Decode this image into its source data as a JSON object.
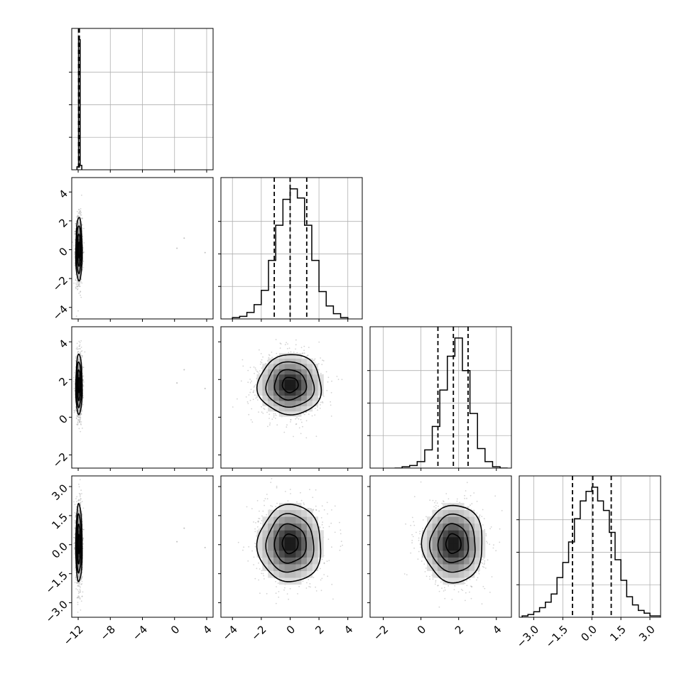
{
  "chart_data": {
    "type": "corner",
    "title": "",
    "n_params": 4,
    "grid": true,
    "quantiles": [
      0.16,
      0.5,
      0.84
    ],
    "colors": {
      "line": "#000000",
      "grid": "#b0b0b0",
      "points": "#808080",
      "background": "#ffffff"
    },
    "params": [
      {
        "index": 0,
        "range": [
          -12.8,
          4.8
        ],
        "ticks": [
          -12,
          -8,
          -4,
          0,
          4
        ],
        "tick_labels": [
          "−12",
          "−8",
          "−4",
          "0",
          "4"
        ],
        "quantiles": [
          -11.95,
          -11.9,
          -11.85
        ],
        "mean": -11.9,
        "std": 0.2
      },
      {
        "index": 1,
        "range": [
          -4.8,
          5.0
        ],
        "ticks": [
          -4,
          -2,
          0,
          2,
          4
        ],
        "tick_labels": [
          "−4",
          "−2",
          "0",
          "2",
          "4"
        ],
        "quantiles": [
          -1.1,
          0.0,
          1.15
        ],
        "mean": 0.0,
        "std": 1.1
      },
      {
        "index": 2,
        "range": [
          -2.7,
          4.8
        ],
        "ticks": [
          -2,
          0,
          2,
          4
        ],
        "tick_labels": [
          "−2",
          "0",
          "2",
          "4"
        ],
        "quantiles": [
          0.9,
          1.72,
          2.5
        ],
        "mean": 1.72,
        "std": 0.8
      },
      {
        "index": 3,
        "range": [
          -3.75,
          3.55
        ],
        "ticks": [
          -3.0,
          -1.5,
          0.0,
          1.5,
          3.0
        ],
        "tick_labels": [
          "−3.0",
          "−1.5",
          "0.0",
          "1.5",
          "3.0"
        ],
        "quantiles": [
          -1.0,
          0.05,
          1.0
        ],
        "mean": 0.05,
        "std": 1.0
      }
    ],
    "histograms": [
      {
        "param": 0,
        "bins": [
          -12.15,
          -11.95,
          -11.75,
          -11.55
        ],
        "counts": [
          0.02,
          0.9,
          0.03
        ]
      },
      {
        "param": 1,
        "bins": [
          -4.0,
          -3.5,
          -3.0,
          -2.5,
          -2.0,
          -1.5,
          -1.0,
          -0.5,
          0.0,
          0.5,
          1.0,
          1.5,
          2.0,
          2.5,
          3.0,
          3.5,
          4.0
        ],
        "counts": [
          0.01,
          0.02,
          0.05,
          0.11,
          0.22,
          0.45,
          0.72,
          0.92,
          1.0,
          0.93,
          0.72,
          0.45,
          0.21,
          0.1,
          0.04,
          0.01
        ]
      },
      {
        "param": 2,
        "bins": [
          -1.4,
          -1.0,
          -0.6,
          -0.2,
          0.2,
          0.6,
          1.0,
          1.4,
          1.8,
          2.2,
          2.6,
          3.0,
          3.4,
          3.8,
          4.2,
          4.6
        ],
        "counts": [
          0.0,
          0.01,
          0.02,
          0.05,
          0.14,
          0.32,
          0.6,
          0.86,
          1.0,
          0.75,
          0.42,
          0.15,
          0.05,
          0.01,
          0.0
        ]
      },
      {
        "param": 3,
        "bins": [
          -3.6,
          -3.3,
          -3.0,
          -2.7,
          -2.4,
          -2.1,
          -1.8,
          -1.5,
          -1.2,
          -0.9,
          -0.6,
          -0.3,
          0.0,
          0.3,
          0.6,
          0.9,
          1.2,
          1.5,
          1.8,
          2.1,
          2.4,
          2.7,
          3.0,
          3.3,
          3.6
        ],
        "counts": [
          0.01,
          0.02,
          0.04,
          0.07,
          0.11,
          0.17,
          0.29,
          0.4,
          0.55,
          0.72,
          0.85,
          0.92,
          0.95,
          0.85,
          0.78,
          0.62,
          0.42,
          0.27,
          0.15,
          0.09,
          0.05,
          0.03,
          0.01,
          0.01
        ]
      }
    ],
    "panels_2d": [
      {
        "x": 0,
        "y": 1
      },
      {
        "x": 0,
        "y": 2
      },
      {
        "x": 1,
        "y": 2
      },
      {
        "x": 0,
        "y": 3
      },
      {
        "x": 1,
        "y": 3
      },
      {
        "x": 2,
        "y": 3
      }
    ],
    "contour_levels_sigma": [
      0.5,
      1.0,
      1.5,
      2.0
    ]
  }
}
